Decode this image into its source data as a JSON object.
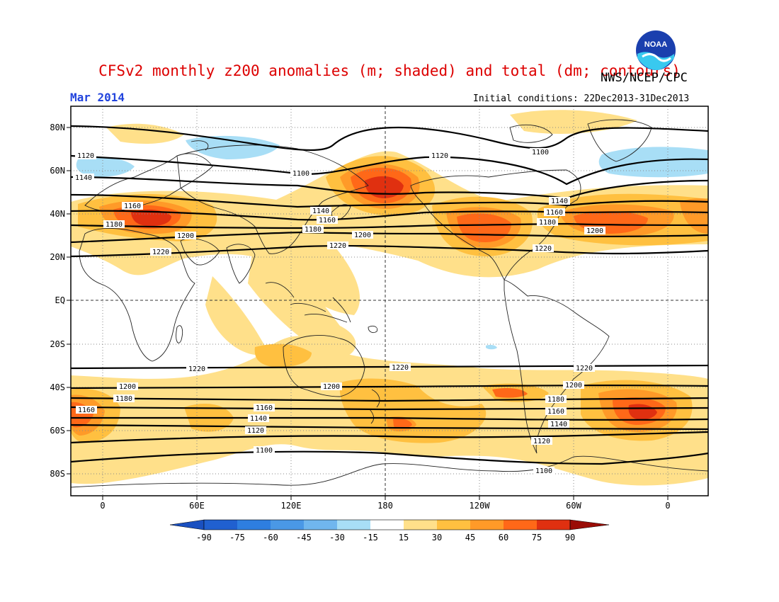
{
  "header": {
    "title": "CFSv2 monthly z200 anomalies (m; shaded) and total (dm; contours)",
    "agency": "NWS/NCEP/CPC",
    "month": "Mar 2014",
    "initial_conditions": "Initial conditions: 22Dec2013-31Dec2013",
    "logo_text": "NOAA"
  },
  "axes": {
    "lat_labels": [
      "80N",
      "60N",
      "40N",
      "20N",
      "EQ",
      "20S",
      "40S",
      "60S",
      "80S"
    ],
    "lon_labels": [
      "0",
      "60E",
      "120E",
      "180",
      "120W",
      "60W",
      "0"
    ]
  },
  "colorbar": {
    "labels": [
      "-90",
      "-75",
      "-60",
      "-45",
      "-30",
      "-15",
      "15",
      "30",
      "45",
      "60",
      "75",
      "90"
    ],
    "colors": [
      "#2060d0",
      "#2e7ee0",
      "#4a98e6",
      "#70b6ee",
      "#a8def6",
      "#ffffff",
      "#ffe08a",
      "#ffc040",
      "#ff9a28",
      "#ff6818",
      "#e03010",
      "#b01008"
    ],
    "low_arrow_color": "#1a50c0",
    "high_arrow_color": "#9a0c06"
  },
  "contour_labels": {
    "nh": [
      "1120",
      "1140",
      "1100",
      "1120",
      "1100",
      "1160",
      "1180",
      "1200",
      "1220",
      "1140",
      "1160",
      "1180",
      "1200",
      "1140",
      "1160",
      "1180",
      "1200",
      "1220",
      "1200",
      "1220"
    ],
    "sh": [
      "1220",
      "1220",
      "1220",
      "1200",
      "1200",
      "1200",
      "1180",
      "1180",
      "1160",
      "1160",
      "1160",
      "1140",
      "1140",
      "1120",
      "1120",
      "1100",
      "1100"
    ]
  }
}
